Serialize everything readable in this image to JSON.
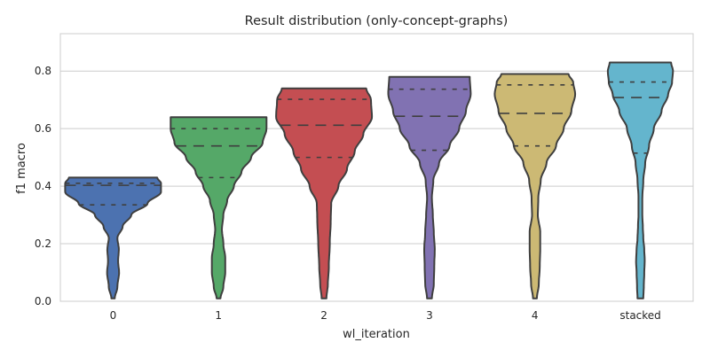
{
  "chart_data": {
    "type": "violin",
    "title": "Result distribution (only-concept-graphs)",
    "xlabel": "wl_iteration",
    "ylabel": "f1 macro",
    "ylim": [
      0.0,
      0.93
    ],
    "yticks": [
      0.0,
      0.2,
      0.4,
      0.6,
      0.8
    ],
    "ytick_labels": [
      "0.0",
      "0.2",
      "0.4",
      "0.6",
      "0.8"
    ],
    "grid": true,
    "categories": [
      "0",
      "1",
      "2",
      "3",
      "4",
      "stacked"
    ],
    "series": [
      {
        "category": "0",
        "color": "#4c72b0",
        "min": 0.01,
        "max": 0.43,
        "q1": 0.335,
        "median": 0.403,
        "q3": 0.41,
        "profile": [
          [
            0.01,
            0.035
          ],
          [
            0.05,
            0.09
          ],
          [
            0.1,
            0.125
          ],
          [
            0.14,
            0.105
          ],
          [
            0.18,
            0.12
          ],
          [
            0.22,
            0.09
          ],
          [
            0.26,
            0.2
          ],
          [
            0.3,
            0.38
          ],
          [
            0.34,
            0.72
          ],
          [
            0.38,
            1.0
          ],
          [
            0.41,
            1.0
          ],
          [
            0.43,
            0.92
          ]
        ]
      },
      {
        "category": "1",
        "color": "#55a868",
        "min": 0.01,
        "max": 0.64,
        "q1": 0.43,
        "median": 0.54,
        "q3": 0.6,
        "profile": [
          [
            0.01,
            0.04
          ],
          [
            0.05,
            0.1
          ],
          [
            0.1,
            0.14
          ],
          [
            0.15,
            0.14
          ],
          [
            0.2,
            0.1
          ],
          [
            0.25,
            0.07
          ],
          [
            0.3,
            0.1
          ],
          [
            0.35,
            0.18
          ],
          [
            0.4,
            0.32
          ],
          [
            0.45,
            0.48
          ],
          [
            0.5,
            0.68
          ],
          [
            0.55,
            0.92
          ],
          [
            0.6,
            1.0
          ],
          [
            0.64,
            1.0
          ]
        ]
      },
      {
        "category": "2",
        "color": "#c44e52",
        "min": 0.01,
        "max": 0.74,
        "q1": 0.5,
        "median": 0.612,
        "q3": 0.702,
        "profile": [
          [
            0.01,
            0.05
          ],
          [
            0.06,
            0.08
          ],
          [
            0.12,
            0.1
          ],
          [
            0.2,
            0.12
          ],
          [
            0.28,
            0.14
          ],
          [
            0.34,
            0.15
          ],
          [
            0.4,
            0.3
          ],
          [
            0.46,
            0.48
          ],
          [
            0.52,
            0.64
          ],
          [
            0.58,
            0.82
          ],
          [
            0.64,
            1.0
          ],
          [
            0.7,
            0.98
          ],
          [
            0.74,
            0.88
          ]
        ]
      },
      {
        "category": "3",
        "color": "#8172b2",
        "min": 0.01,
        "max": 0.78,
        "q1": 0.525,
        "median": 0.643,
        "q3": 0.737,
        "profile": [
          [
            0.01,
            0.05
          ],
          [
            0.06,
            0.09
          ],
          [
            0.12,
            0.1
          ],
          [
            0.18,
            0.11
          ],
          [
            0.24,
            0.09
          ],
          [
            0.3,
            0.07
          ],
          [
            0.36,
            0.05
          ],
          [
            0.42,
            0.08
          ],
          [
            0.48,
            0.2
          ],
          [
            0.54,
            0.42
          ],
          [
            0.6,
            0.62
          ],
          [
            0.66,
            0.76
          ],
          [
            0.72,
            0.86
          ],
          [
            0.78,
            0.84
          ]
        ]
      },
      {
        "category": "4",
        "color": "#ccb974",
        "min": 0.01,
        "max": 0.79,
        "q1": 0.54,
        "median": 0.653,
        "q3": 0.752,
        "profile": [
          [
            0.01,
            0.04
          ],
          [
            0.06,
            0.08
          ],
          [
            0.12,
            0.1
          ],
          [
            0.18,
            0.11
          ],
          [
            0.24,
            0.11
          ],
          [
            0.3,
            0.06
          ],
          [
            0.36,
            0.07
          ],
          [
            0.42,
            0.12
          ],
          [
            0.48,
            0.24
          ],
          [
            0.54,
            0.44
          ],
          [
            0.6,
            0.6
          ],
          [
            0.66,
            0.76
          ],
          [
            0.72,
            0.84
          ],
          [
            0.76,
            0.8
          ],
          [
            0.79,
            0.7
          ]
        ]
      },
      {
        "category": "stacked",
        "color": "#64b5cd",
        "min": 0.01,
        "max": 0.83,
        "q1": 0.515,
        "median": 0.708,
        "q3": 0.762,
        "profile": [
          [
            0.01,
            0.06
          ],
          [
            0.05,
            0.07
          ],
          [
            0.1,
            0.08
          ],
          [
            0.14,
            0.09
          ],
          [
            0.18,
            0.08
          ],
          [
            0.22,
            0.06
          ],
          [
            0.26,
            0.05
          ],
          [
            0.3,
            0.04
          ],
          [
            0.36,
            0.04
          ],
          [
            0.42,
            0.06
          ],
          [
            0.48,
            0.1
          ],
          [
            0.54,
            0.18
          ],
          [
            0.6,
            0.28
          ],
          [
            0.66,
            0.44
          ],
          [
            0.72,
            0.58
          ],
          [
            0.76,
            0.66
          ],
          [
            0.8,
            0.68
          ],
          [
            0.83,
            0.64
          ]
        ]
      }
    ]
  }
}
